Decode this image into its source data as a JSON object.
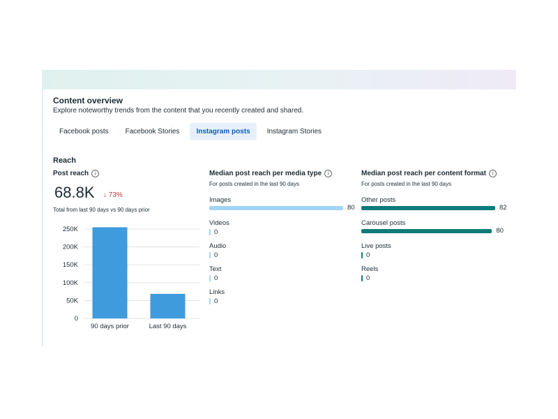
{
  "header": {
    "title": "Content overview",
    "subtitle": "Explore noteworthy trends from the content that you recently created and shared."
  },
  "tabs": [
    {
      "label": "Facebook posts",
      "active": false
    },
    {
      "label": "Facebook Stories",
      "active": false
    },
    {
      "label": "Instagram posts",
      "active": true
    },
    {
      "label": "Instagram Stories",
      "active": false
    }
  ],
  "reach": {
    "heading": "Reach",
    "post_reach": {
      "title": "Post reach",
      "value": "68.8K",
      "change": "↓ 73%",
      "note": "Total from last 90 days vs 90 days prior"
    },
    "media_type": {
      "title": "Median post reach per media type",
      "subtitle": "For posts created in the last 90 days",
      "color": "#a3d4f5",
      "rows": [
        {
          "label": "Images",
          "value": 80,
          "value_text": "80"
        },
        {
          "label": "Videos",
          "value": 0,
          "value_text": "0"
        },
        {
          "label": "Audio",
          "value": 0,
          "value_text": "0"
        },
        {
          "label": "Text",
          "value": 0,
          "value_text": "0"
        },
        {
          "label": "Links",
          "value": 0,
          "value_text": "0"
        }
      ]
    },
    "content_format": {
      "title": "Median post reach per content format",
      "subtitle": "For posts created in the last 90 days",
      "color": "#0f7b7a",
      "rows": [
        {
          "label": "Other posts",
          "value": 82,
          "value_text": "82"
        },
        {
          "label": "Carousel posts",
          "value": 80,
          "value_text": "80"
        },
        {
          "label": "Live posts",
          "value": 0,
          "value_text": "0"
        },
        {
          "label": "Reels",
          "value": 0,
          "value_text": "0"
        }
      ]
    }
  },
  "chart_data": {
    "type": "bar",
    "categories": [
      "90 days prior",
      "Last 90 days"
    ],
    "values": [
      255000,
      68800
    ],
    "ylim": [
      0,
      250000
    ],
    "yticks": [
      0,
      50000,
      100000,
      150000,
      200000,
      250000
    ],
    "ytick_labels": [
      "0",
      "50K",
      "100K",
      "150K",
      "200K",
      "250K"
    ],
    "color": "#3f9bdc",
    "grid": true,
    "xlabel": "",
    "ylabel": ""
  }
}
